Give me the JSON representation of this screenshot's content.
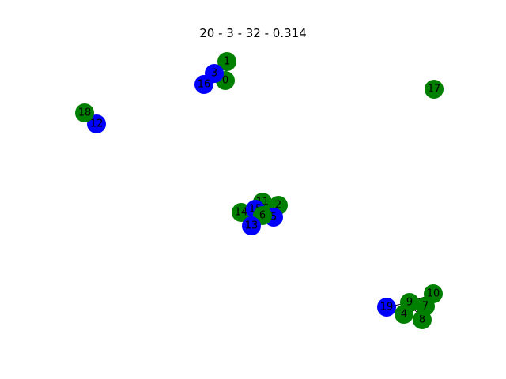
{
  "title": "20 - 3 - 32 - 0.314",
  "colors": {
    "green": "#008000",
    "blue": "#0000ff",
    "edge": "#000000"
  },
  "nodes": [
    {
      "id": "0",
      "color": "green"
    },
    {
      "id": "1",
      "color": "green"
    },
    {
      "id": "2",
      "color": "green"
    },
    {
      "id": "3",
      "color": "blue"
    },
    {
      "id": "4",
      "color": "green"
    },
    {
      "id": "5",
      "color": "blue"
    },
    {
      "id": "6",
      "color": "green"
    },
    {
      "id": "7",
      "color": "green"
    },
    {
      "id": "8",
      "color": "green"
    },
    {
      "id": "9",
      "color": "green"
    },
    {
      "id": "10",
      "color": "green"
    },
    {
      "id": "11",
      "color": "green"
    },
    {
      "id": "12",
      "color": "blue"
    },
    {
      "id": "13",
      "color": "blue"
    },
    {
      "id": "14",
      "color": "green"
    },
    {
      "id": "15",
      "color": "blue"
    },
    {
      "id": "16",
      "color": "blue"
    },
    {
      "id": "17",
      "color": "green"
    },
    {
      "id": "18",
      "color": "green"
    },
    {
      "id": "19",
      "color": "blue"
    }
  ],
  "edges": [
    [
      "0",
      "1"
    ],
    [
      "0",
      "3"
    ],
    [
      "0",
      "16"
    ],
    [
      "1",
      "3"
    ],
    [
      "1",
      "16"
    ],
    [
      "3",
      "16"
    ],
    [
      "12",
      "18"
    ],
    [
      "2",
      "5"
    ],
    [
      "2",
      "11"
    ],
    [
      "2",
      "15"
    ],
    [
      "5",
      "6"
    ],
    [
      "5",
      "11"
    ],
    [
      "5",
      "15"
    ],
    [
      "6",
      "11"
    ],
    [
      "6",
      "13"
    ],
    [
      "6",
      "14"
    ],
    [
      "6",
      "15"
    ],
    [
      "11",
      "14"
    ],
    [
      "11",
      "15"
    ],
    [
      "13",
      "14"
    ],
    [
      "13",
      "15"
    ],
    [
      "14",
      "15"
    ],
    [
      "4",
      "7"
    ],
    [
      "4",
      "8"
    ],
    [
      "4",
      "9"
    ],
    [
      "4",
      "19"
    ],
    [
      "7",
      "8"
    ],
    [
      "7",
      "9"
    ],
    [
      "7",
      "10"
    ],
    [
      "8",
      "9"
    ],
    [
      "9",
      "10"
    ],
    [
      "9",
      "19"
    ]
  ]
}
